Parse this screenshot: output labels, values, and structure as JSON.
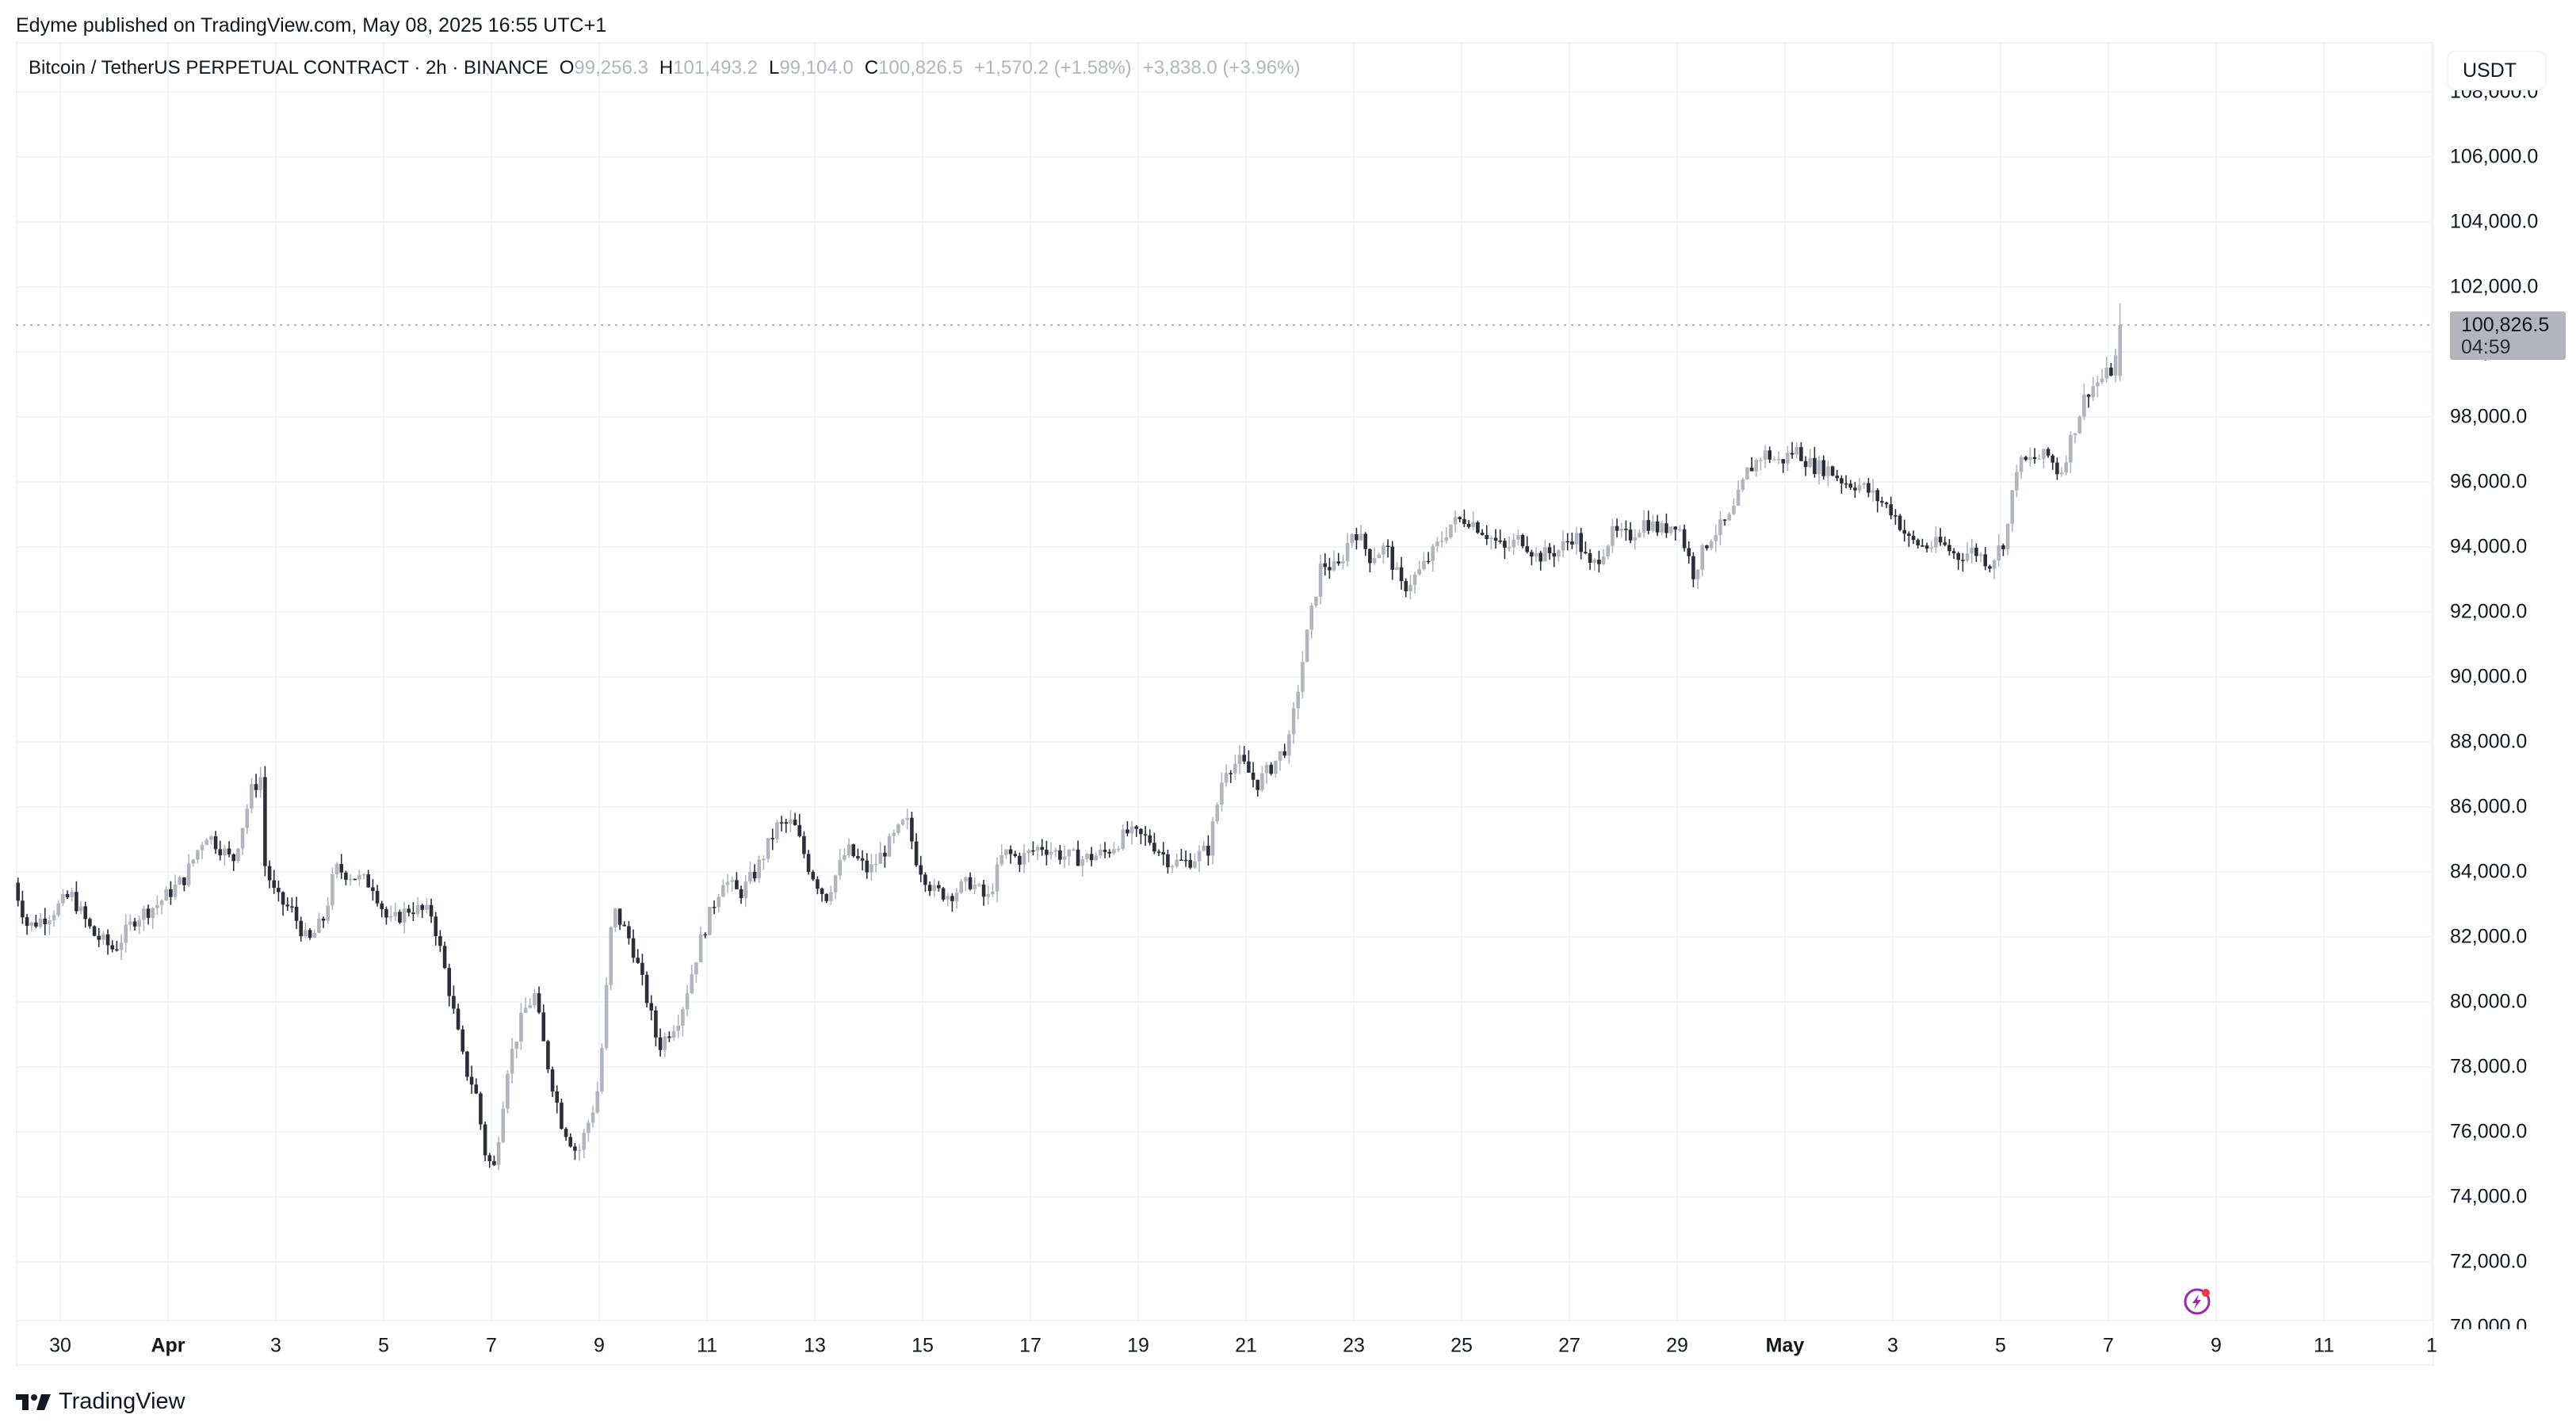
{
  "publish_line": "Edyme published on TradingView.com, May 08, 2025 16:55 UTC+1",
  "legend": {
    "symbol": "Bitcoin / TetherUS PERPETUAL CONTRACT · 2h · BINANCE",
    "open_label": "O",
    "open": "99,256.3",
    "high_label": "H",
    "high": "101,493.2",
    "low_label": "L",
    "low": "99,104.0",
    "close_label": "C",
    "close": "100,826.5",
    "change": "+1,570.2 (+1.58%)",
    "change2": "+3,838.0 (+3.96%)"
  },
  "currency_button": "USDT",
  "last_price": {
    "value": "100,826.5",
    "countdown": "04:59"
  },
  "brand": "TradingView",
  "colors": {
    "up": "#b2b5be",
    "down": "#2a2e39",
    "grid": "#f0f3fa",
    "price_line": "#b2b5be",
    "alert_ring": "#9c27b0",
    "alert_dot": "#f23645"
  },
  "chart_data": {
    "type": "candlestick",
    "title": "Bitcoin / TetherUS PERPETUAL CONTRACT · 2h · BINANCE",
    "interval": "2h",
    "xlabel": "",
    "ylabel": "USDT",
    "ylim": [
      70000,
      108000
    ],
    "grid": true,
    "y_ticks": [
      "108,000.0",
      "106,000.0",
      "104,000.0",
      "102,000.0",
      "100,000.0",
      "98,000.0",
      "96,000.0",
      "94,000.0",
      "92,000.0",
      "90,000.0",
      "88,000.0",
      "86,000.0",
      "84,000.0",
      "82,000.0",
      "80,000.0",
      "78,000.0",
      "76,000.0",
      "74,000.0",
      "72,000.0",
      "70,000.0"
    ],
    "x_ticks": [
      {
        "label": "30",
        "day": -2,
        "bold": false
      },
      {
        "label": "Apr",
        "day": 0,
        "bold": true
      },
      {
        "label": "3",
        "day": 2,
        "bold": false
      },
      {
        "label": "5",
        "day": 4,
        "bold": false
      },
      {
        "label": "7",
        "day": 6,
        "bold": false
      },
      {
        "label": "9",
        "day": 8,
        "bold": false
      },
      {
        "label": "11",
        "day": 10,
        "bold": false
      },
      {
        "label": "13",
        "day": 12,
        "bold": false
      },
      {
        "label": "15",
        "day": 14,
        "bold": false
      },
      {
        "label": "17",
        "day": 16,
        "bold": false
      },
      {
        "label": "19",
        "day": 18,
        "bold": false
      },
      {
        "label": "21",
        "day": 20,
        "bold": false
      },
      {
        "label": "23",
        "day": 22,
        "bold": false
      },
      {
        "label": "25",
        "day": 24,
        "bold": false
      },
      {
        "label": "27",
        "day": 26,
        "bold": false
      },
      {
        "label": "29",
        "day": 28,
        "bold": false
      },
      {
        "label": "May",
        "day": 30,
        "bold": true
      },
      {
        "label": "3",
        "day": 32,
        "bold": false
      },
      {
        "label": "5",
        "day": 34,
        "bold": false
      },
      {
        "label": "7",
        "day": 36,
        "bold": false
      },
      {
        "label": "9",
        "day": 38,
        "bold": false
      },
      {
        "label": "11",
        "day": 40,
        "bold": false
      },
      {
        "label": "1",
        "day": 42,
        "bold": false
      }
    ],
    "path_waypoints": [
      [
        -2.95,
        84100
      ],
      [
        -2.6,
        82300
      ],
      [
        -2.2,
        82700
      ],
      [
        -1.8,
        83300
      ],
      [
        -1.4,
        82100
      ],
      [
        -1.0,
        81600
      ],
      [
        -0.6,
        82600
      ],
      [
        -0.2,
        83000
      ],
      [
        0.3,
        83800
      ],
      [
        0.7,
        85200
      ],
      [
        1.0,
        84700
      ],
      [
        1.2,
        84300
      ],
      [
        1.55,
        86500
      ],
      [
        1.75,
        87000
      ],
      [
        1.8,
        84200
      ],
      [
        2.0,
        83200
      ],
      [
        2.3,
        82800
      ],
      [
        2.6,
        81800
      ],
      [
        2.9,
        82600
      ],
      [
        3.1,
        84100
      ],
      [
        3.4,
        83900
      ],
      [
        3.8,
        83600
      ],
      [
        4.1,
        82400
      ],
      [
        4.5,
        82900
      ],
      [
        4.9,
        82700
      ],
      [
        5.2,
        80500
      ],
      [
        5.5,
        78000
      ],
      [
        5.7,
        77300
      ],
      [
        5.9,
        75200
      ],
      [
        6.05,
        74900
      ],
      [
        6.3,
        78000
      ],
      [
        6.6,
        79700
      ],
      [
        6.8,
        80200
      ],
      [
        7.0,
        78400
      ],
      [
        7.3,
        76300
      ],
      [
        7.6,
        75300
      ],
      [
        7.9,
        76800
      ],
      [
        8.0,
        77500
      ],
      [
        8.25,
        82900
      ],
      [
        8.6,
        81800
      ],
      [
        8.9,
        80000
      ],
      [
        9.1,
        78600
      ],
      [
        9.5,
        79600
      ],
      [
        9.9,
        82000
      ],
      [
        10.3,
        83800
      ],
      [
        10.6,
        83300
      ],
      [
        10.9,
        84000
      ],
      [
        11.3,
        85400
      ],
      [
        11.6,
        85500
      ],
      [
        11.9,
        84100
      ],
      [
        12.2,
        83200
      ],
      [
        12.6,
        84700
      ],
      [
        13.0,
        84000
      ],
      [
        13.4,
        84900
      ],
      [
        13.7,
        85600
      ],
      [
        13.9,
        84300
      ],
      [
        14.2,
        83400
      ],
      [
        14.5,
        83300
      ],
      [
        14.9,
        83700
      ],
      [
        15.2,
        83100
      ],
      [
        15.5,
        84600
      ],
      [
        15.8,
        84400
      ],
      [
        16.2,
        84800
      ],
      [
        16.6,
        84500
      ],
      [
        17.0,
        84400
      ],
      [
        17.4,
        84600
      ],
      [
        17.8,
        85200
      ],
      [
        18.2,
        85000
      ],
      [
        18.6,
        84300
      ],
      [
        18.9,
        84300
      ],
      [
        19.3,
        84700
      ],
      [
        19.6,
        87200
      ],
      [
        19.9,
        87400
      ],
      [
        20.2,
        86700
      ],
      [
        20.5,
        87300
      ],
      [
        20.8,
        88000
      ],
      [
        21.1,
        91000
      ],
      [
        21.4,
        93500
      ],
      [
        21.7,
        93300
      ],
      [
        22.0,
        94600
      ],
      [
        22.3,
        93700
      ],
      [
        22.6,
        94000
      ],
      [
        22.9,
        92700
      ],
      [
        23.2,
        93200
      ],
      [
        23.5,
        93900
      ],
      [
        23.8,
        94700
      ],
      [
        24.1,
        94900
      ],
      [
        24.4,
        94500
      ],
      [
        24.8,
        93900
      ],
      [
        25.1,
        94300
      ],
      [
        25.4,
        93700
      ],
      [
        25.8,
        93900
      ],
      [
        26.1,
        94400
      ],
      [
        26.4,
        93300
      ],
      [
        26.8,
        94400
      ],
      [
        27.1,
        94300
      ],
      [
        27.4,
        94800
      ],
      [
        27.7,
        94500
      ],
      [
        28.0,
        94800
      ],
      [
        28.3,
        93200
      ],
      [
        28.6,
        94300
      ],
      [
        29.0,
        94900
      ],
      [
        29.3,
        96300
      ],
      [
        29.6,
        96900
      ],
      [
        29.9,
        96600
      ],
      [
        30.2,
        97000
      ],
      [
        30.5,
        96500
      ],
      [
        30.8,
        96400
      ],
      [
        31.1,
        96000
      ],
      [
        31.4,
        95900
      ],
      [
        31.7,
        95500
      ],
      [
        32.0,
        95100
      ],
      [
        32.3,
        94200
      ],
      [
        32.6,
        94000
      ],
      [
        32.9,
        94100
      ],
      [
        33.2,
        93700
      ],
      [
        33.5,
        93900
      ],
      [
        33.8,
        93500
      ],
      [
        34.1,
        94300
      ],
      [
        34.3,
        96500
      ],
      [
        34.6,
        96700
      ],
      [
        34.9,
        96800
      ],
      [
        35.1,
        96200
      ],
      [
        35.3,
        97300
      ],
      [
        35.6,
        98800
      ],
      [
        35.9,
        99200
      ],
      [
        36.1,
        99500
      ],
      [
        36.25,
        100826.5
      ]
    ],
    "recent_ohlc": {
      "open": 99256.3,
      "high": 101493.2,
      "low": 99104.0,
      "close": 100826.5
    },
    "annotations": [
      "Last price 100,826.5",
      "Bar countdown 04:59"
    ],
    "legend_position": "top-left"
  }
}
